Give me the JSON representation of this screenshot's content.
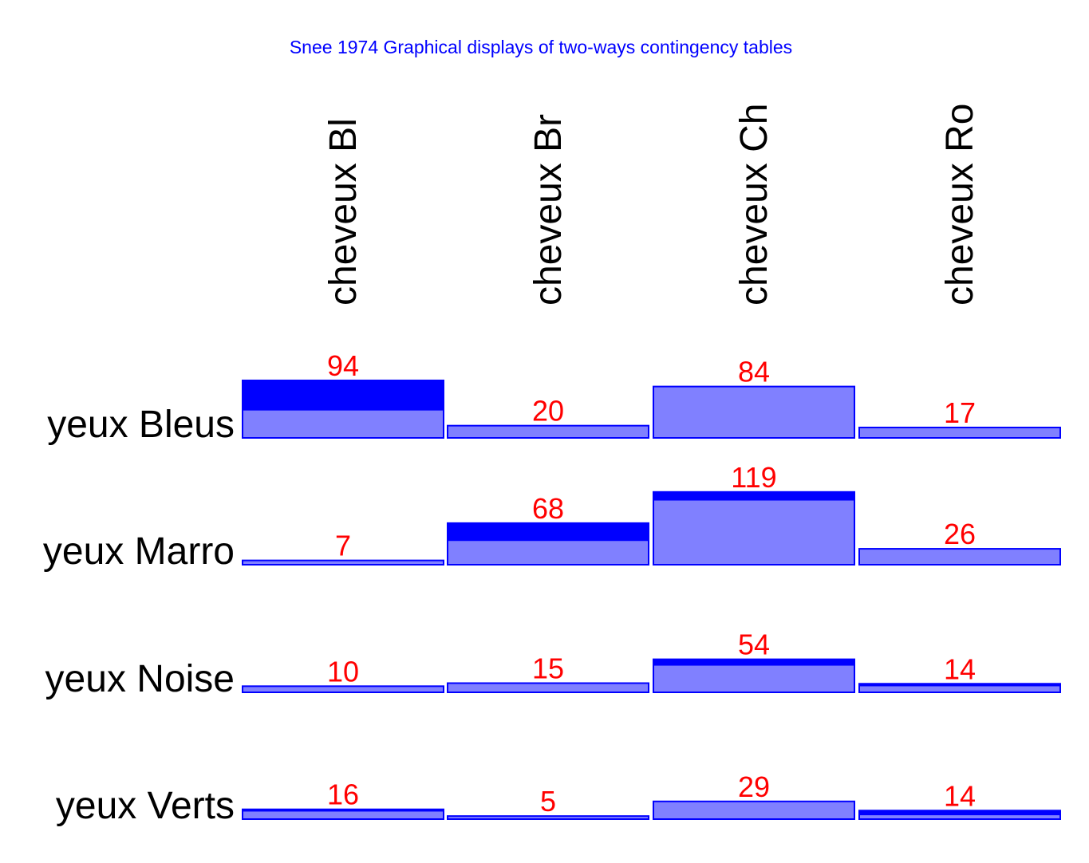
{
  "chart_data": {
    "type": "bar",
    "title": "Snee 1974 Graphical displays of two-ways contingency tables",
    "columns": [
      "cheveux Bl",
      "cheveux Br",
      "cheveux Ch",
      "cheveux Ro"
    ],
    "rows": [
      "yeux Bleus",
      "yeux Marro",
      "yeux Noise",
      "yeux Verts"
    ],
    "values": [
      [
        94,
        20,
        84,
        17
      ],
      [
        7,
        68,
        119,
        26
      ],
      [
        10,
        15,
        54,
        14
      ],
      [
        16,
        5,
        29,
        14
      ]
    ],
    "colors": {
      "observed_excess": "#0000ff",
      "expected": "#8080ff",
      "outline": "#0000ff",
      "value_text": "#ff0000",
      "title_text": "#0000ff",
      "label_text": "#000000"
    }
  }
}
